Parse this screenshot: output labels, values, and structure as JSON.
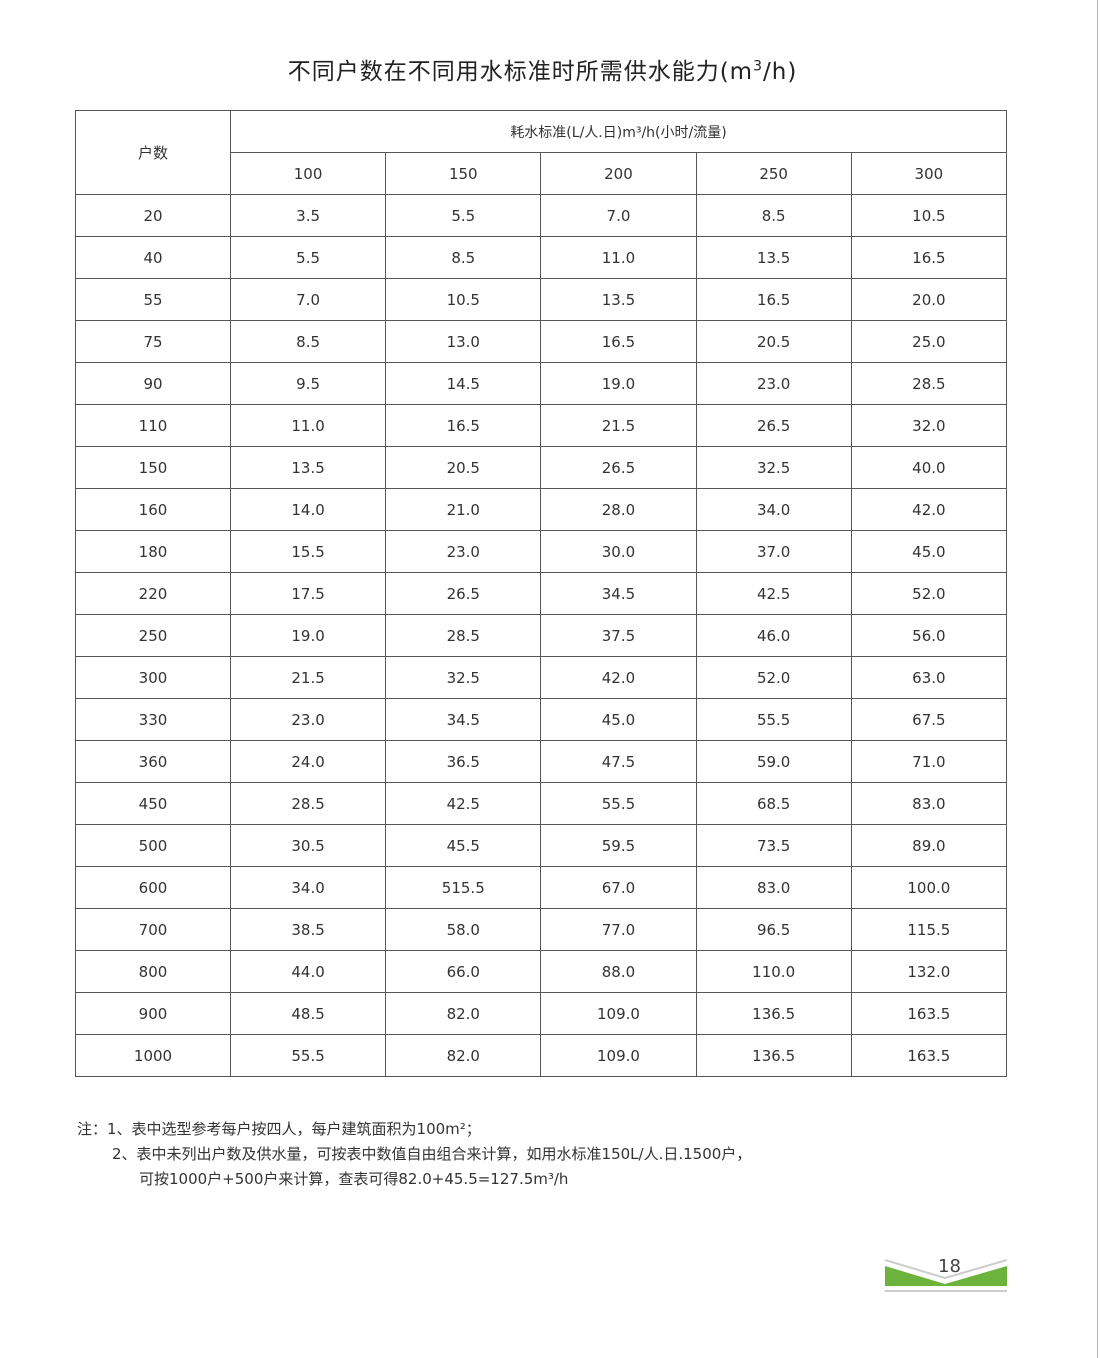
{
  "title": "不同户数在不同用水标准时所需供水能力(m",
  "title_sup": "3",
  "title_end": "/h)",
  "table": {
    "row_header": "户数",
    "group_header": "耗水标准(L/人.日)m³/h(小时/流量)",
    "columns": [
      "100",
      "150",
      "200",
      "250",
      "300"
    ],
    "rows": [
      [
        "20",
        "3.5",
        "5.5",
        "7.0",
        "8.5",
        "10.5"
      ],
      [
        "40",
        "5.5",
        "8.5",
        "11.0",
        "13.5",
        "16.5"
      ],
      [
        "55",
        "7.0",
        "10.5",
        "13.5",
        "16.5",
        "20.0"
      ],
      [
        "75",
        "8.5",
        "13.0",
        "16.5",
        "20.5",
        "25.0"
      ],
      [
        "90",
        "9.5",
        "14.5",
        "19.0",
        "23.0",
        "28.5"
      ],
      [
        "110",
        "11.0",
        "16.5",
        "21.5",
        "26.5",
        "32.0"
      ],
      [
        "150",
        "13.5",
        "20.5",
        "26.5",
        "32.5",
        "40.0"
      ],
      [
        "160",
        "14.0",
        "21.0",
        "28.0",
        "34.0",
        "42.0"
      ],
      [
        "180",
        "15.5",
        "23.0",
        "30.0",
        "37.0",
        "45.0"
      ],
      [
        "220",
        "17.5",
        "26.5",
        "34.5",
        "42.5",
        "52.0"
      ],
      [
        "250",
        "19.0",
        "28.5",
        "37.5",
        "46.0",
        "56.0"
      ],
      [
        "300",
        "21.5",
        "32.5",
        "42.0",
        "52.0",
        "63.0"
      ],
      [
        "330",
        "23.0",
        "34.5",
        "45.0",
        "55.5",
        "67.5"
      ],
      [
        "360",
        "24.0",
        "36.5",
        "47.5",
        "59.0",
        "71.0"
      ],
      [
        "450",
        "28.5",
        "42.5",
        "55.5",
        "68.5",
        "83.0"
      ],
      [
        "500",
        "30.5",
        "45.5",
        "59.5",
        "73.5",
        "89.0"
      ],
      [
        "600",
        "34.0",
        "515.5",
        "67.0",
        "83.0",
        "100.0"
      ],
      [
        "700",
        "38.5",
        "58.0",
        "77.0",
        "96.5",
        "115.5"
      ],
      [
        "800",
        "44.0",
        "66.0",
        "88.0",
        "110.0",
        "132.0"
      ],
      [
        "900",
        "48.5",
        "82.0",
        "109.0",
        "136.5",
        "163.5"
      ],
      [
        "1000",
        "55.5",
        "82.0",
        "109.0",
        "136.5",
        "163.5"
      ]
    ]
  },
  "notes": [
    "注：1、表中选型参考每户按四人，每户建筑面积为100m²；",
    "2、表中未列出户数及供水量，可按表中数值自由组合来计算，如用水标准150L/人.日.1500户，",
    "可按1000户+500户来计算，查表可得82.0+45.5=127.5m³/h"
  ],
  "page_number": "18",
  "colors": {
    "accent_green": "#6cb33e",
    "edge": "#e8a0a0"
  }
}
